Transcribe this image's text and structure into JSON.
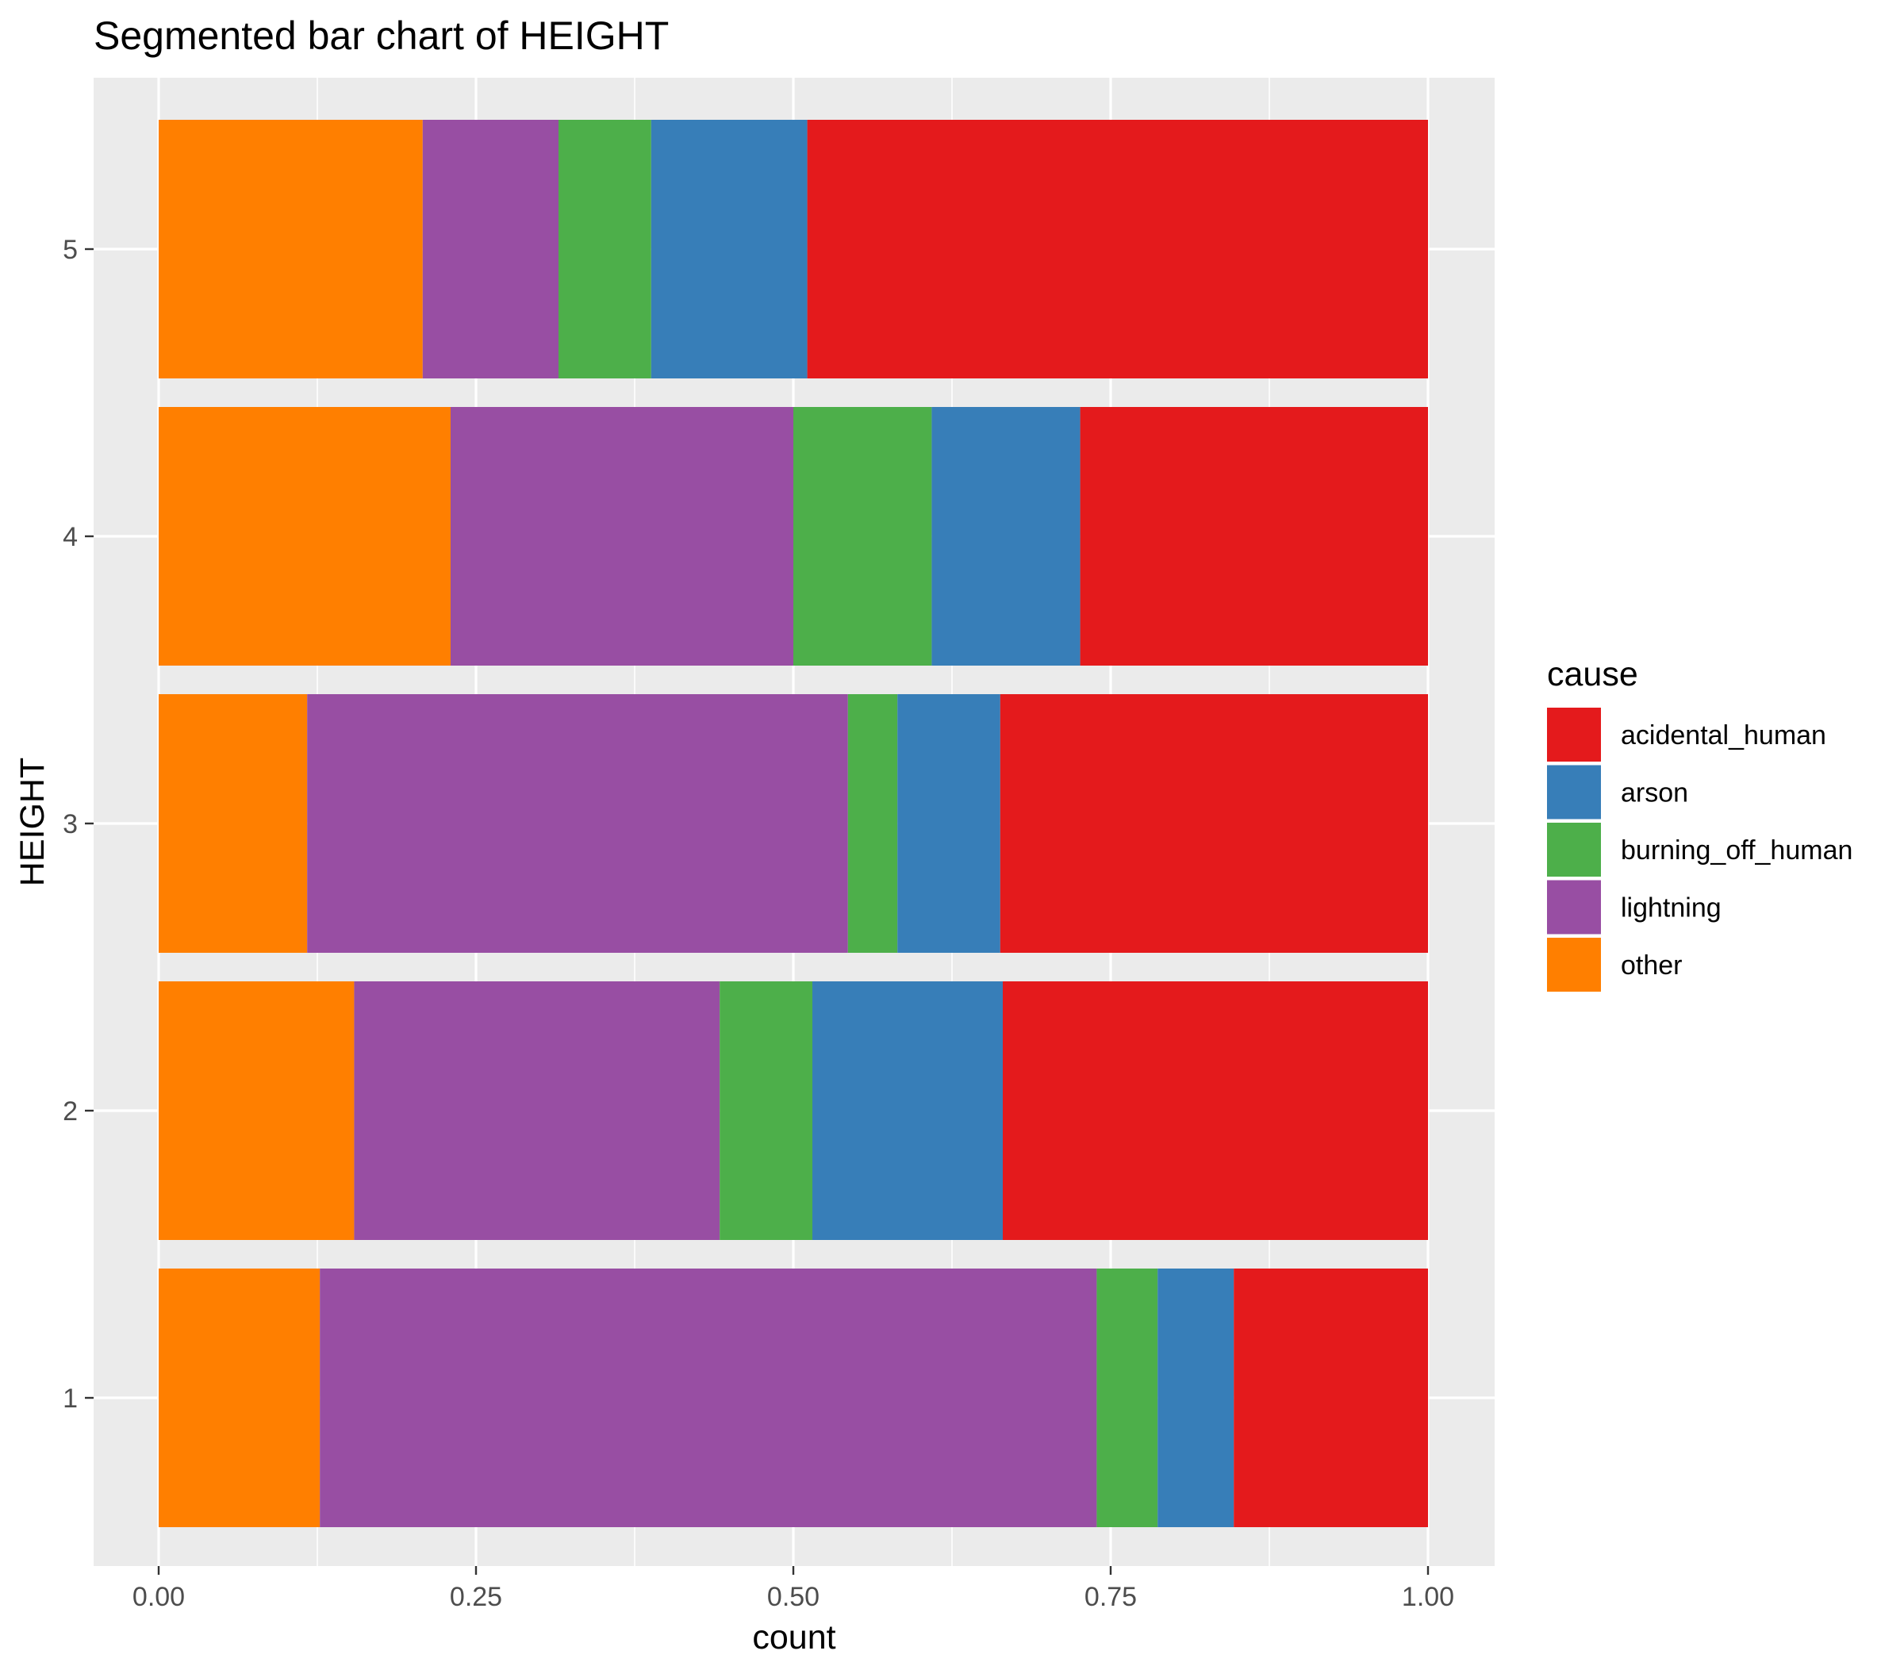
{
  "chart_data": {
    "type": "bar",
    "orientation": "horizontal",
    "stacked": true,
    "title": "Segmented bar chart of HEIGHT",
    "xlabel": "count",
    "ylabel": "HEIGHT",
    "xlim": [
      -0.1,
      2.0
    ],
    "x_ticks": [
      "0.00",
      "0.25",
      "0.50",
      "0.75",
      "1.00"
    ],
    "categories": [
      "1",
      "2",
      "3",
      "4",
      "5"
    ],
    "grid": true,
    "background": "#EBEBEB",
    "legend": {
      "title": "cause",
      "placement": "right",
      "entries": [
        "acidental_human",
        "arson",
        "burning_off_human",
        "lightning",
        "other"
      ]
    },
    "stack_order": [
      "other",
      "lightning",
      "burning_off_human",
      "arson",
      "acidental_human"
    ],
    "series": [
      {
        "name": "acidental_human",
        "color": "#E41A1C",
        "values": [
          0.153,
          0.335,
          0.337,
          0.274,
          0.489
        ]
      },
      {
        "name": "arson",
        "color": "#377EB8",
        "values": [
          0.06,
          0.15,
          0.081,
          0.117,
          0.123
        ]
      },
      {
        "name": "burning_off_human",
        "color": "#4DAF4A",
        "values": [
          0.048,
          0.073,
          0.039,
          0.109,
          0.073
        ]
      },
      {
        "name": "lightning",
        "color": "#984EA3",
        "values": [
          0.612,
          0.288,
          0.426,
          0.27,
          0.107
        ]
      },
      {
        "name": "other",
        "color": "#FF7F00",
        "values": [
          0.127,
          0.154,
          0.117,
          0.23,
          0.208
        ]
      }
    ]
  }
}
